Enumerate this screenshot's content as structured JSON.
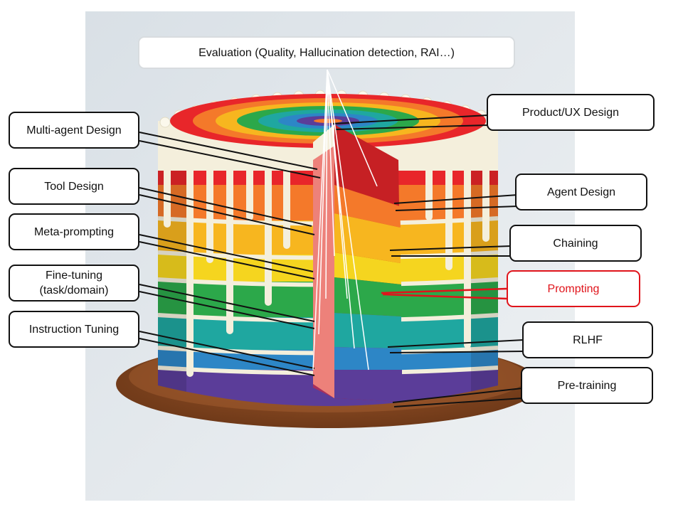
{
  "top_label": "Evaluation (Quality, Hallucination detection, RAI…)",
  "left_labels": [
    "Multi-agent Design",
    "Tool Design",
    "Meta-prompting",
    "Fine-tuning\n(task/domain)",
    "Instruction Tuning"
  ],
  "right_labels": [
    "Product/UX Design",
    "Agent Design",
    "Chaining",
    "Prompting",
    "RLHF",
    "Pre-training"
  ],
  "highlighted_label": "Prompting",
  "colors": {
    "highlight": "#e0141b",
    "layers": [
      "#e8262a",
      "#f4792a",
      "#f7b61f",
      "#f5d51f",
      "#2ca84a",
      "#1fa7a0",
      "#2d86c6",
      "#5b3d99"
    ],
    "board": "#8a4a26",
    "frosting": "#f4efdc"
  }
}
